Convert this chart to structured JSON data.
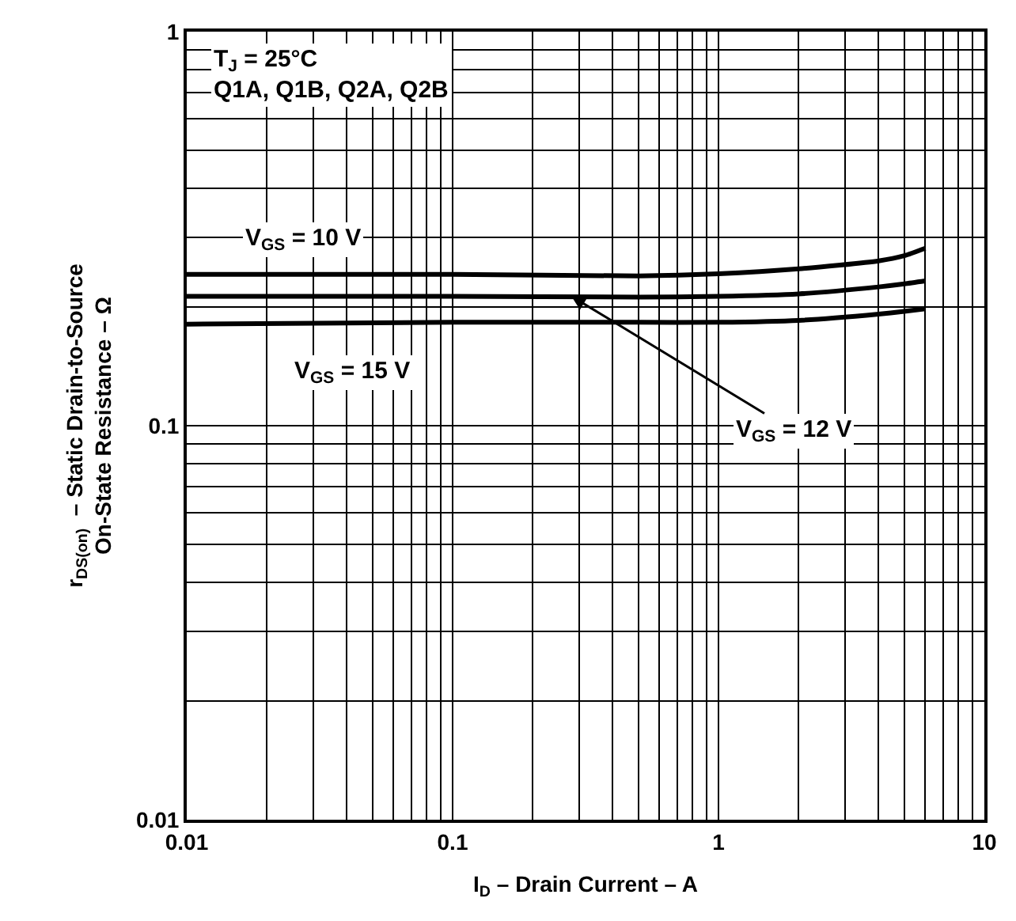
{
  "chart_data": {
    "type": "line",
    "xlabel": "I$_{D}$ – Drain Current – A",
    "ylabel": "r$_{DS(on)}$  – Static Drain-to-Source\nOn-State Resistance – Ω",
    "log": "xy",
    "xlim": [
      0.01,
      10
    ],
    "ylim": [
      0.01,
      1
    ],
    "xticks": [
      0.01,
      0.1,
      1,
      10
    ],
    "yticks": [
      0.01,
      0.1,
      1
    ],
    "grid": true,
    "marker": "none",
    "line_style": "solid",
    "x": [
      0.01,
      0.1,
      0.5,
      1,
      2,
      4,
      5,
      6
    ],
    "series": [
      {
        "color": "#000000",
        "values": [
          0.242,
          0.242,
          0.24,
          0.243,
          0.25,
          0.262,
          0.27,
          0.282
        ]
      },
      {
        "color": "#000000",
        "values": [
          0.213,
          0.213,
          0.212,
          0.213,
          0.216,
          0.225,
          0.229,
          0.233
        ]
      },
      {
        "color": "#000000",
        "values": [
          0.181,
          0.183,
          0.183,
          0.183,
          0.185,
          0.192,
          0.195,
          0.198
        ]
      }
    ],
    "annotations": [
      "T$_{J}$ = 25°C\nQ1A, Q1B, Q2A, Q2B",
      "V$_{GS}$ = 10 V",
      "V$_{GS}$ = 15 V",
      {
        "text": "V$_{GS}$ = 12 V",
        "x": 0.28,
        "y": 0.213
      }
    ]
  }
}
